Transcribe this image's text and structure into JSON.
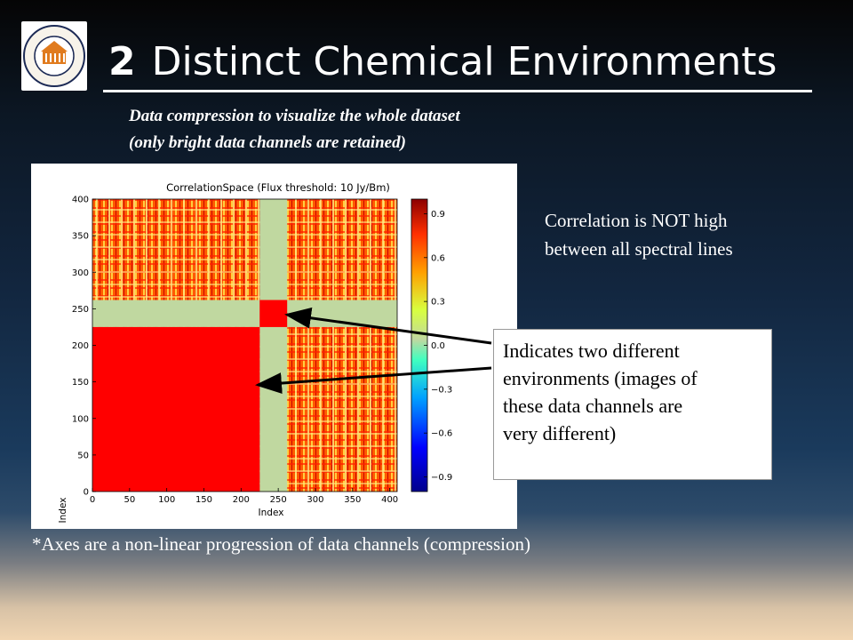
{
  "logo": {
    "top_text": "UNIVERSITY OF",
    "bottom_text": "VIRGINIA",
    "year": "1819"
  },
  "slide": {
    "title_number": "2",
    "title_text": "Distinct Chemical Environments",
    "subtitle_line1": "Data compression to visualize the whole dataset",
    "subtitle_line2": "(only bright data channels are retained)",
    "note_line1": "Correlation is NOT high",
    "note_line2": "between all spectral lines",
    "callout_line1": "Indicates two different",
    "callout_line2": "environments (images of",
    "callout_line3": "these data channels are",
    "callout_line4": "very different)",
    "footnote": "*Axes are a non-linear progression of data channels (compression)"
  },
  "chart_data": {
    "type": "heatmap",
    "title": "CorrelationSpace (Flux threshold: 10 Jy/Bm)",
    "xlabel": "Index",
    "ylabel": "Index",
    "xlim": [
      0,
      410
    ],
    "ylim": [
      0,
      400
    ],
    "xticks": [
      0,
      50,
      100,
      150,
      200,
      250,
      300,
      350,
      400
    ],
    "yticks": [
      0,
      50,
      100,
      150,
      200,
      250,
      300,
      350,
      400
    ],
    "colorbar": {
      "range": [
        -1,
        1
      ],
      "ticks": [
        "0.9",
        "0.6",
        "0.3",
        "0.0",
        "−0.3",
        "−0.6",
        "−0.9"
      ],
      "tick_values": [
        0.9,
        0.6,
        0.3,
        0.0,
        -0.3,
        -0.6,
        -0.9
      ]
    },
    "regions": [
      {
        "name": "block-a",
        "x": [
          0,
          225
        ],
        "y": [
          0,
          225
        ],
        "value": 1.0
      },
      {
        "name": "block-b",
        "x": [
          225,
          262
        ],
        "y": [
          225,
          262
        ],
        "value": 1.0
      },
      {
        "name": "gap-column",
        "x": [
          225,
          262
        ],
        "y": [
          0,
          400
        ],
        "value": 0.1
      },
      {
        "name": "gap-row",
        "x": [
          0,
          410
        ],
        "y": [
          225,
          262
        ],
        "value": 0.1
      }
    ],
    "colors": {
      "high": "#ff0000",
      "mid": "#ffa000",
      "zero": "#c0d8a0",
      "low": "#00008c"
    }
  }
}
